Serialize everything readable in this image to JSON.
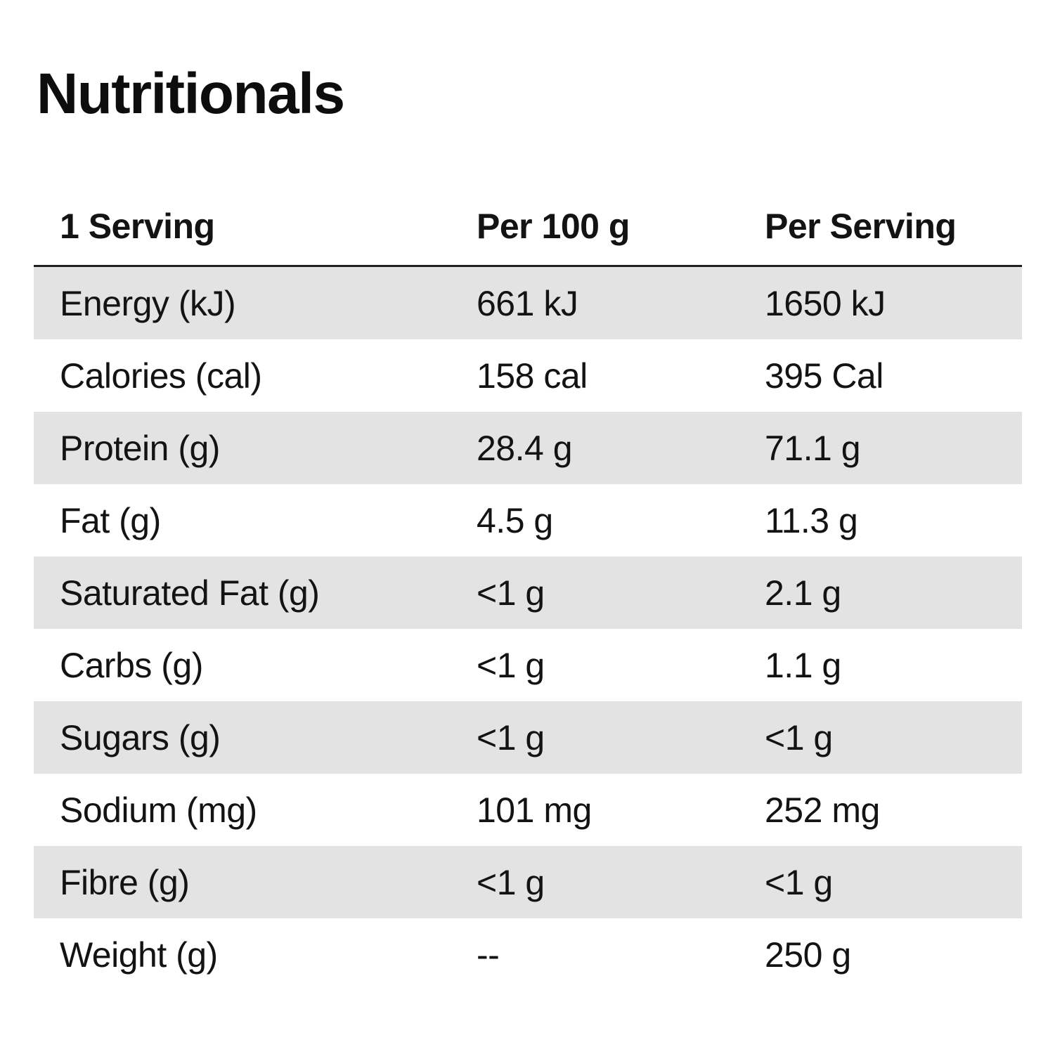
{
  "page": {
    "title": "Nutritionals"
  },
  "table": {
    "headers": {
      "serving": "1 Serving",
      "per_100g": "Per 100 g",
      "per_serving": "Per Serving"
    },
    "rows": [
      {
        "label": "Energy (kJ)",
        "per_100g": "661 kJ",
        "per_serving": "1650 kJ"
      },
      {
        "label": "Calories (cal)",
        "per_100g": "158 cal",
        "per_serving": "395 Cal"
      },
      {
        "label": "Protein (g)",
        "per_100g": "28.4 g",
        "per_serving": "71.1 g"
      },
      {
        "label": "Fat (g)",
        "per_100g": "4.5 g",
        "per_serving": "11.3 g"
      },
      {
        "label": "Saturated Fat (g)",
        "per_100g": "<1 g",
        "per_serving": "2.1 g"
      },
      {
        "label": "Carbs (g)",
        "per_100g": "<1 g",
        "per_serving": "1.1 g"
      },
      {
        "label": "Sugars (g)",
        "per_100g": "<1 g",
        "per_serving": "<1 g"
      },
      {
        "label": "Sodium (mg)",
        "per_100g": "101 mg",
        "per_serving": "252 mg"
      },
      {
        "label": "Fibre (g)",
        "per_100g": "<1 g",
        "per_serving": "<1 g"
      },
      {
        "label": "Weight (g)",
        "per_100g": "--",
        "per_serving": "250 g"
      }
    ],
    "colors": {
      "stripe": "#e3e3e3",
      "rule": "#1f1f1f",
      "text": "#131313"
    }
  }
}
